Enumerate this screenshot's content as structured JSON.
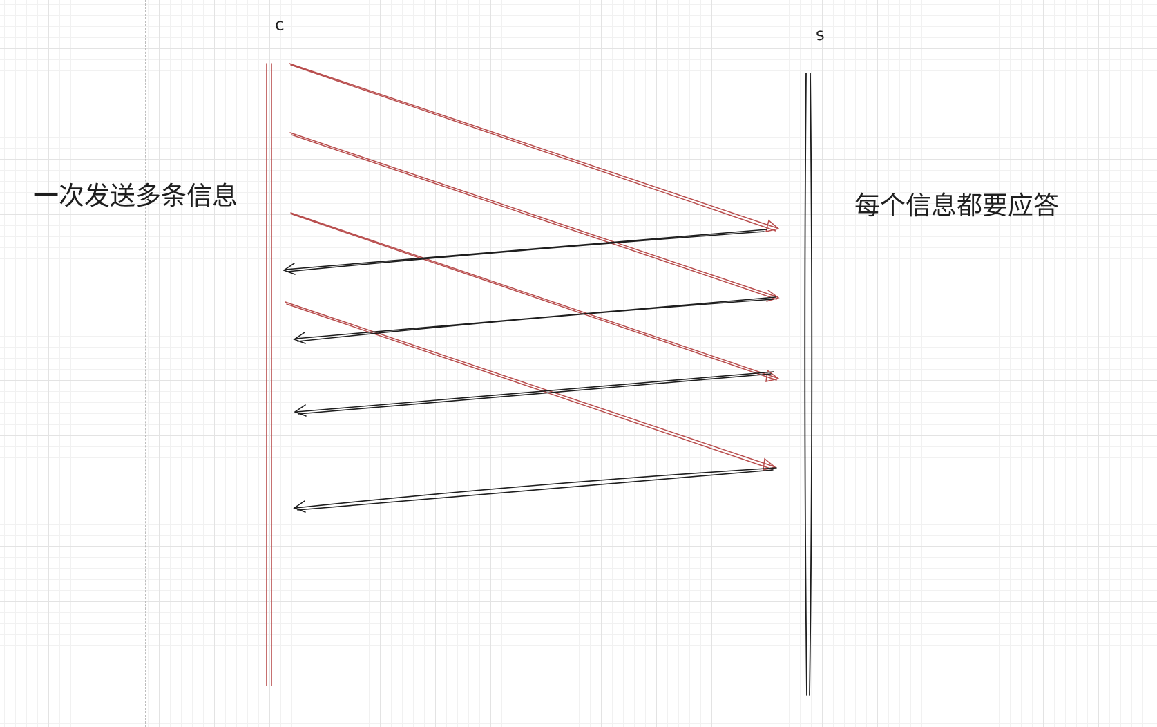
{
  "client": {
    "name": "c",
    "note": "一次发送多条信息",
    "color": "#b84d4d"
  },
  "server": {
    "name": "s",
    "note": "每个信息都要应答",
    "color": "#1e1e1e"
  },
  "messages": [
    {
      "from": "c",
      "to": "s",
      "kind": "request"
    },
    {
      "from": "c",
      "to": "s",
      "kind": "request"
    },
    {
      "from": "c",
      "to": "s",
      "kind": "request"
    },
    {
      "from": "c",
      "to": "s",
      "kind": "request"
    },
    {
      "from": "s",
      "to": "c",
      "kind": "response"
    },
    {
      "from": "s",
      "to": "c",
      "kind": "response"
    },
    {
      "from": "s",
      "to": "c",
      "kind": "response"
    },
    {
      "from": "s",
      "to": "c",
      "kind": "response"
    }
  ]
}
